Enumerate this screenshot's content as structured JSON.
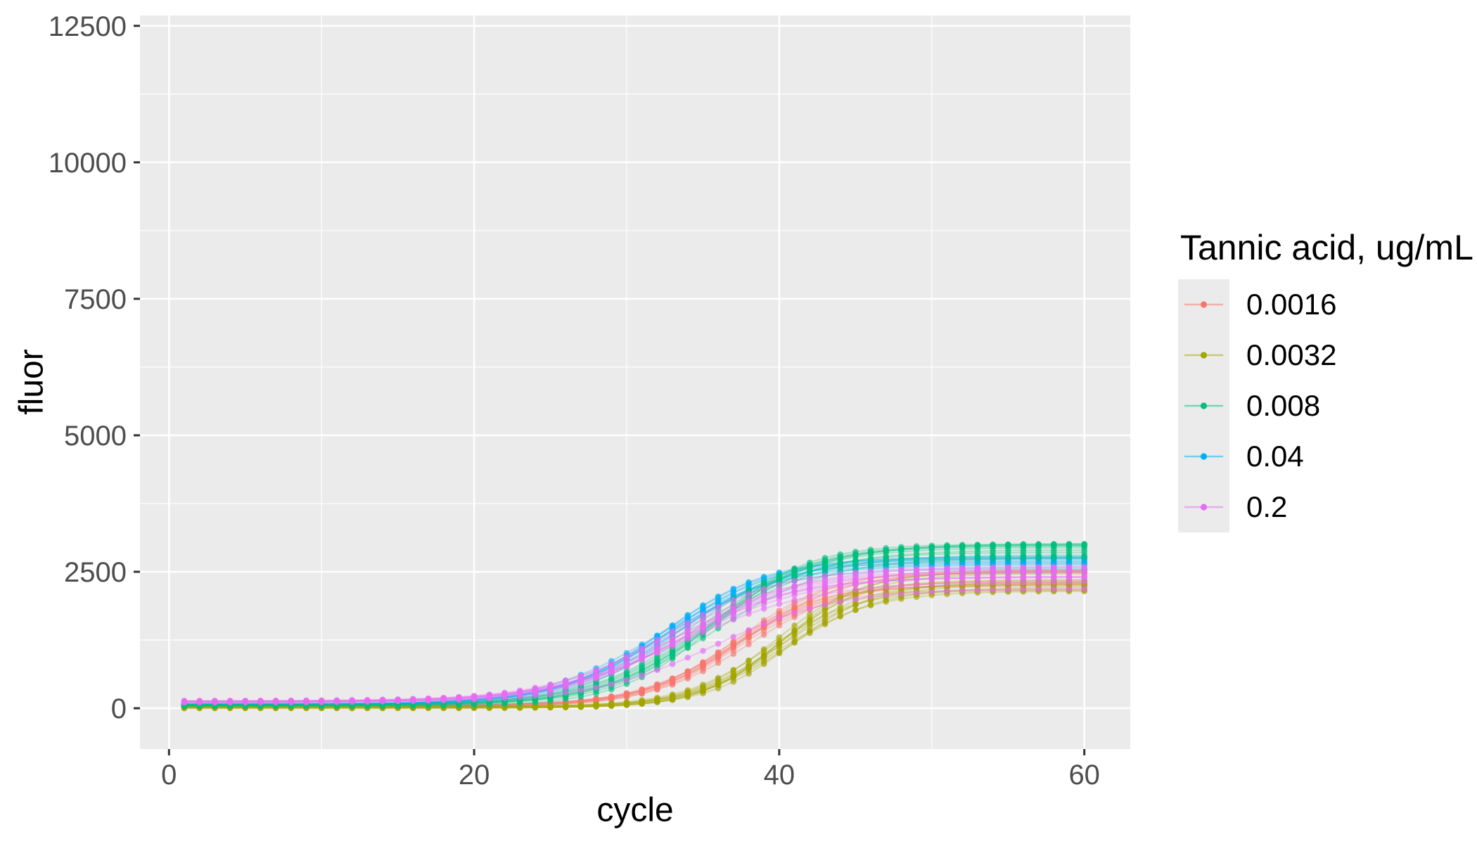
{
  "figure": {
    "panel_bg": "#EBEBEB",
    "grid_color": "#FFFFFF",
    "tick_color": "#333333",
    "tick_label_color": "#4D4D4D",
    "axis_title_color": "#000000",
    "x_axis": {
      "title": "cycle",
      "tick_labels": [
        "0",
        "20",
        "40",
        "60"
      ]
    },
    "y_axis": {
      "title": "fluor",
      "tick_labels": [
        "0",
        "2500",
        "5000",
        "7500",
        "10000",
        "12500"
      ]
    }
  },
  "legend": {
    "title": "Tannic acid, ug/mL",
    "items": [
      {
        "label": "0.0016",
        "color": "#F8766D"
      },
      {
        "label": "0.0032",
        "color": "#A3A500"
      },
      {
        "label": "0.008",
        "color": "#00BF7D"
      },
      {
        "label": "0.04",
        "color": "#00B0F6"
      },
      {
        "label": "0.2",
        "color": "#E76BF3"
      }
    ]
  },
  "chart_data": {
    "type": "line",
    "title": "",
    "xlabel": "cycle",
    "ylabel": "fluor",
    "xlim": [
      -2,
      63
    ],
    "ylim": [
      -625,
      13125
    ],
    "x_ticks": [
      0,
      20,
      40,
      60
    ],
    "y_ticks": [
      0,
      2500,
      5000,
      7500,
      10000,
      12500
    ],
    "x_minor_ticks": [
      10,
      30,
      50
    ],
    "y_minor_ticks": [
      1250,
      3750,
      6250,
      8750,
      11250
    ],
    "grid": "major and minor white gridlines on gray panel",
    "legend_position": "right",
    "legend_title": "Tannic acid, ug/mL",
    "cycle_range": [
      1,
      60
    ],
    "x_samples": [
      1,
      5,
      10,
      15,
      20,
      25,
      28,
      30,
      32,
      34,
      36,
      38,
      40,
      42,
      44,
      46,
      48,
      50,
      52,
      55,
      60
    ],
    "series": [
      {
        "name": "0.0016",
        "color": "#F8766D",
        "replicates": 10,
        "spread_frac": 0.09,
        "sigmoid": {
          "baseline": 45,
          "plateau": 2380,
          "midpoint_cycle": 37.3,
          "slope_cycles": 3.1
        },
        "mean_fluor": [
          45,
          45,
          45,
          47,
          54,
          88,
          156,
          248,
          403,
          644,
          972,
          1344,
          1691,
          1960,
          2139,
          2247,
          2308,
          2342,
          2360,
          2372,
          2378
        ]
      },
      {
        "name": "0.0032",
        "color": "#A3A500",
        "replicates": 10,
        "spread_frac": 0.09,
        "sigmoid": {
          "baseline": 15,
          "plateau": 2340,
          "midpoint_cycle": 40.0,
          "slope_cycles": 2.9
        },
        "mean_fluor": [
          15,
          15,
          15,
          16,
          17,
          28,
          52,
          87,
          153,
          276,
          483,
          793,
          1178,
          1563,
          1872,
          2079,
          2201,
          2268,
          2303,
          2327,
          2338
        ]
      },
      {
        "name": "0.008",
        "color": "#00BF7D",
        "replicates": 10,
        "spread_frac": 0.05,
        "sigmoid": {
          "baseline": 55,
          "plateau": 2870,
          "midpoint_cycle": 35.0,
          "slope_cycles": 3.5
        },
        "mean_fluor": [
          55,
          55,
          57,
          64,
          93,
          208,
          391,
          599,
          894,
          1263,
          1663,
          2032,
          2326,
          2535,
          2669,
          2754,
          2802,
          2832,
          2848,
          2861,
          2868
        ]
      },
      {
        "name": "0.04",
        "color": "#00B0F6",
        "replicates": 10,
        "spread_frac": 0.05,
        "sigmoid": {
          "baseline": 70,
          "plateau": 2680,
          "midpoint_cycle": 32.5,
          "slope_cycles": 3.6
        },
        "mean_fluor": [
          70,
          71,
          75,
          90,
          149,
          359,
          651,
          939,
          1284,
          1643,
          1964,
          2215,
          2391,
          2506,
          2578,
          2620,
          2645,
          2660,
          2668,
          2675,
          2679
        ]
      },
      {
        "name": "0.2",
        "color": "#E76BF3",
        "replicates": 10,
        "spread_frac": 0.07,
        "sigmoid": {
          "baseline": 120,
          "plateau": 2490,
          "midpoint_cycle": 33.2,
          "slope_cycles": 3.9
        },
        "outlier_replicate": {
          "midpoint_shift": 2.6,
          "plateau_scale": 0.88
        },
        "mean_fluor": [
          120,
          120,
          126,
          142,
          198,
          378,
          615,
          844,
          1124,
          1426,
          1713,
          1954,
          2137,
          2265,
          2350,
          2404,
          2438,
          2458,
          2471,
          2481,
          2488
        ]
      }
    ],
    "style": {
      "line_opacity": 0.3,
      "point_opacity": 0.65,
      "point_radius": 4.3
    }
  }
}
